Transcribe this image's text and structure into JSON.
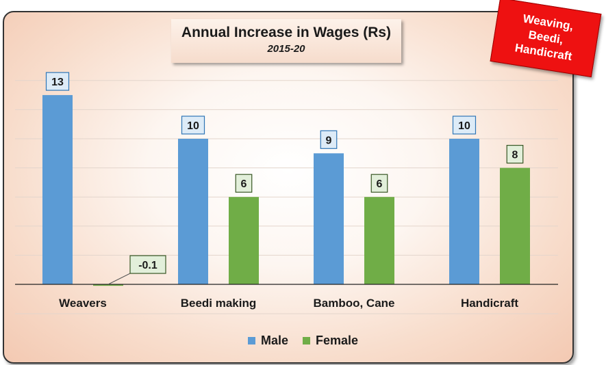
{
  "badge": {
    "lines": [
      "Weaving,",
      "Beedi,",
      "Handicraft"
    ]
  },
  "chart_data": {
    "type": "bar",
    "title": "Annual Increase in Wages (Rs)",
    "subtitle": "2015-20",
    "categories": [
      "Weavers",
      "Beedi making",
      "Bamboo, Cane",
      "Handicraft"
    ],
    "series": [
      {
        "name": "Male",
        "values": [
          13,
          10,
          9,
          10
        ],
        "color": "#5b9bd5",
        "label_fill": "#ddebf7",
        "label_stroke": "#2e75b6"
      },
      {
        "name": "Female",
        "values": [
          -0.1,
          6,
          6,
          8
        ],
        "color": "#70ad47",
        "label_fill": "#e2efda",
        "label_stroke": "#375623"
      }
    ],
    "ylim": [
      0,
      14
    ],
    "grid": true,
    "legend": "bottom"
  }
}
